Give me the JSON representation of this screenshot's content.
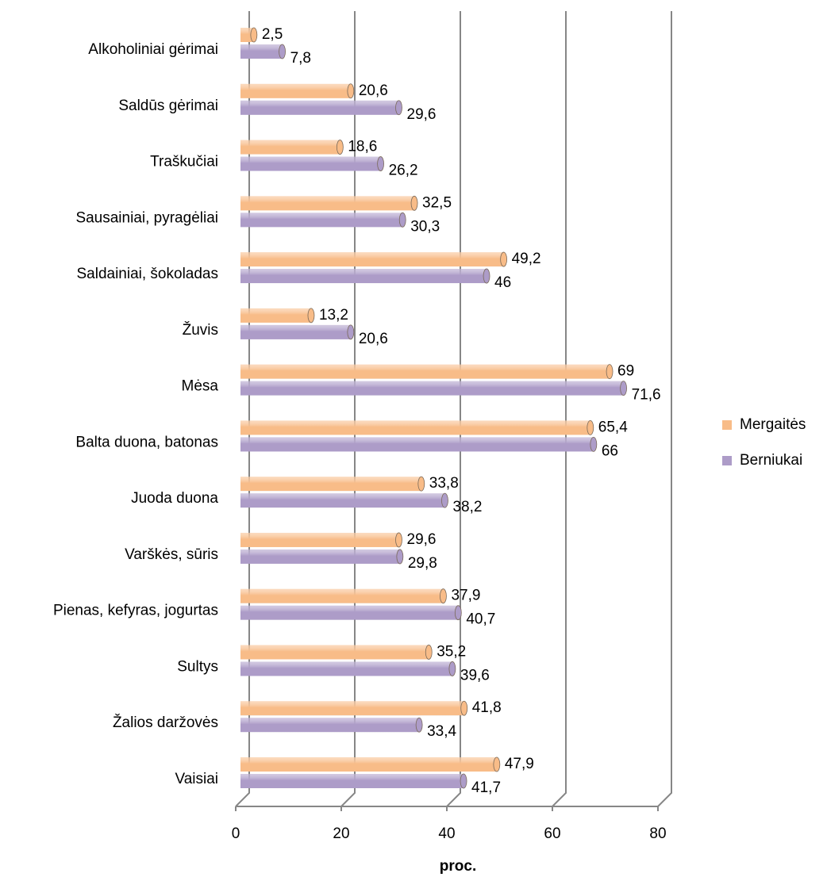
{
  "chart_data": {
    "type": "bar",
    "orientation": "horizontal",
    "style": "3d-cylinder",
    "x_label": "proc.",
    "categories": [
      "Alkoholiniai gėrimai",
      "Saldūs gėrimai",
      "Traškučiai",
      "Sausainiai, pyragėliai",
      "Saldainiai, šokoladas",
      "Žuvis",
      "Mėsa",
      "Balta duona, batonas",
      "Juoda duona",
      "Varškės, sūris",
      "Pienas, kefyras, jogurtas",
      "Sultys",
      "Žalios daržovės",
      "Vaisiai"
    ],
    "series": [
      {
        "name": "Mergaitės",
        "color": "#f8bc88",
        "values": [
          2.5,
          20.6,
          18.6,
          32.5,
          49.2,
          13.2,
          69,
          65.4,
          33.8,
          29.6,
          37.9,
          35.2,
          41.8,
          47.9
        ],
        "value_labels": [
          "2,5",
          "20,6",
          "18,6",
          "32,5",
          "49,2",
          "13,2",
          "69",
          "65,4",
          "33,8",
          "29,6",
          "37,9",
          "35,2",
          "41,8",
          "47,9"
        ]
      },
      {
        "name": "Berniukai",
        "color": "#ad9cc8",
        "values": [
          7.8,
          29.6,
          26.2,
          30.3,
          46,
          20.6,
          71.6,
          66,
          38.2,
          29.8,
          40.7,
          39.6,
          33.4,
          41.7
        ],
        "value_labels": [
          "7,8",
          "29,6",
          "26,2",
          "30,3",
          "46",
          "20,6",
          "71,6",
          "66",
          "38,2",
          "29,8",
          "40,7",
          "39,6",
          "33,4",
          "41,7"
        ]
      }
    ],
    "xlim": [
      0,
      80
    ],
    "xticks": [
      0,
      20,
      40,
      60,
      80
    ],
    "grid": true,
    "legend": "right"
  }
}
